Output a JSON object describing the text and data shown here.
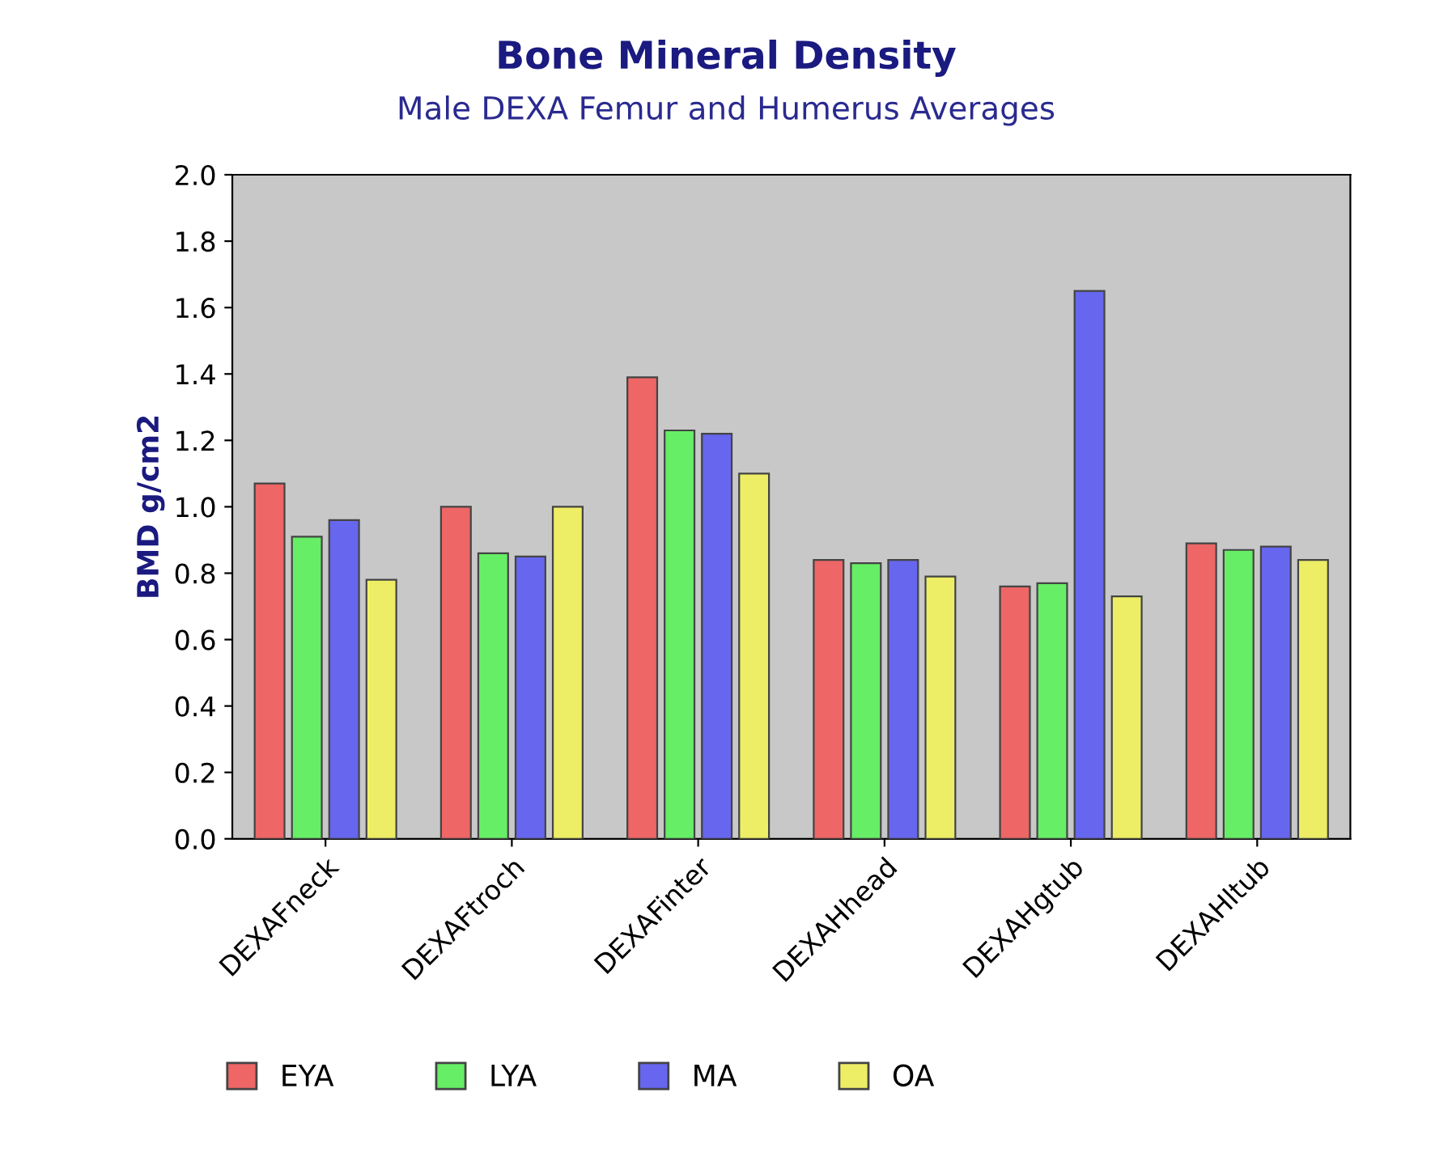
{
  "chart_data": {
    "type": "bar",
    "title": "Bone Mineral Density",
    "subtitle": "Male DEXA Femur and Humerus Averages",
    "ylabel": "BMD g/cm2",
    "categories": [
      "DEXAFneck",
      "DEXAFtroch",
      "DEXAFinter",
      "DEXAHhead",
      "DEXAHgtub",
      "DEXAHltub"
    ],
    "series": [
      {
        "name": "EYA",
        "color": "#ee6666",
        "values": [
          1.07,
          1.0,
          1.39,
          0.84,
          0.76,
          0.89
        ]
      },
      {
        "name": "LYA",
        "color": "#66ee66",
        "values": [
          0.91,
          0.86,
          1.23,
          0.83,
          0.77,
          0.87
        ]
      },
      {
        "name": "MA",
        "color": "#6666ee",
        "values": [
          0.96,
          0.85,
          1.22,
          0.84,
          1.65,
          0.88
        ]
      },
      {
        "name": "OA",
        "color": "#eeee66",
        "values": [
          0.78,
          1.0,
          1.1,
          0.79,
          0.73,
          0.84
        ]
      }
    ],
    "ylim": [
      0,
      2.0
    ],
    "yticks": [
      {
        "value": 0,
        "label": "0.0"
      },
      0.2,
      0.4,
      0.6,
      0.8,
      {
        "value": 1,
        "label": "1.0"
      },
      1.2,
      1.4,
      1.6,
      1.8,
      {
        "value": 2,
        "label": "2.0"
      }
    ],
    "legend": "bottom",
    "grid": false
  }
}
